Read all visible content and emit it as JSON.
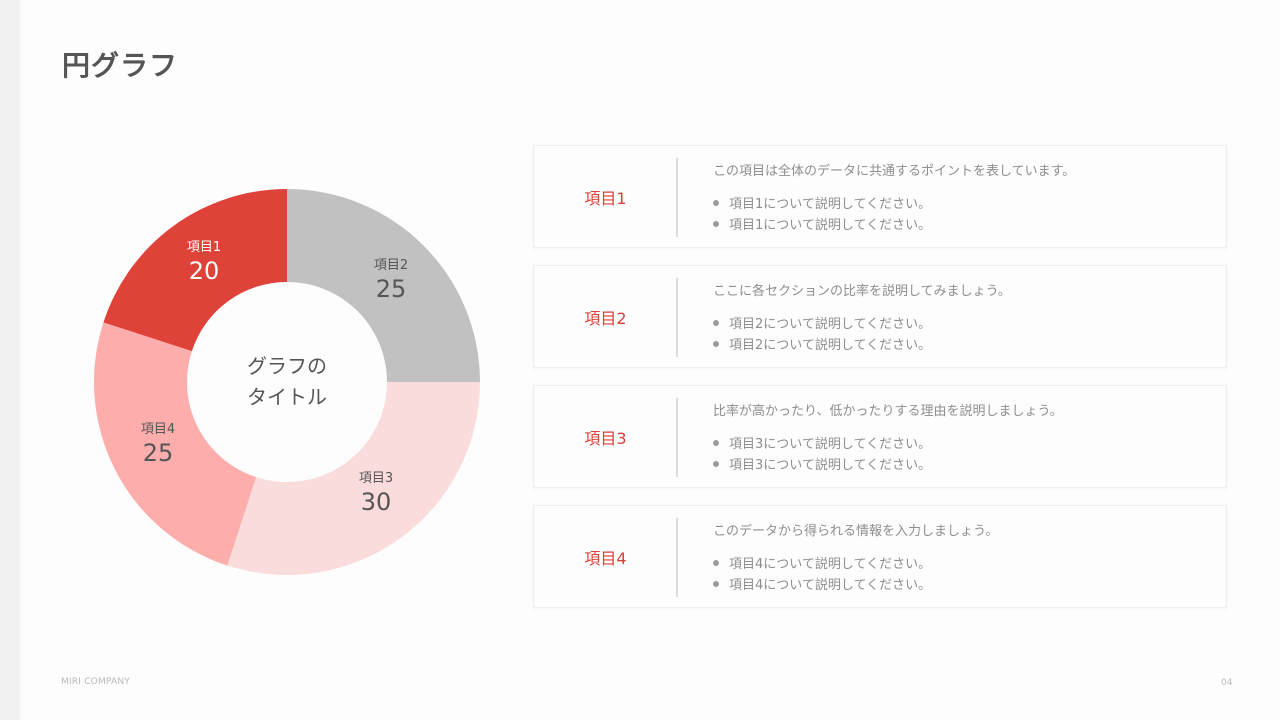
{
  "page": {
    "title": "円グラフ",
    "footer_company": "MIRI COMPANY",
    "page_number": "04"
  },
  "chart_data": {
    "type": "pie",
    "variant": "donut",
    "title": "グラフのタイトル",
    "center_label": "グラフの\nタイトル",
    "start_angle": "12 o'clock, clockwise",
    "categories": [
      "項目2",
      "項目3",
      "項目4",
      "項目1"
    ],
    "values": [
      25,
      30,
      25,
      20
    ],
    "colors": [
      "#c2c1c2",
      "#fadcdc",
      "#fdadab",
      "#df4239"
    ],
    "label_colors": [
      "#555555",
      "#555555",
      "#555555",
      "#ffffff"
    ],
    "legend": "none (labels inside segments)"
  },
  "segments": [
    {
      "name": "項目1",
      "value": "20"
    },
    {
      "name": "項目2",
      "value": "25"
    },
    {
      "name": "項目3",
      "value": "30"
    },
    {
      "name": "項目4",
      "value": "25"
    }
  ],
  "cards": [
    {
      "name": "項目1",
      "description": "この項目は全体のデータに共通するポイントを表しています。",
      "bullets": [
        "項目1について説明してください。",
        "項目1について説明してください。"
      ]
    },
    {
      "name": "項目2",
      "description": "ここに各セクションの比率を説明してみましょう。",
      "bullets": [
        "項目2について説明してください。",
        "項目2について説明してください。"
      ]
    },
    {
      "name": "項目3",
      "description": "比率が高かったり、低かったりする理由を説明しましょう。",
      "bullets": [
        "項目3について説明してください。",
        "項目3について説明してください。"
      ]
    },
    {
      "name": "項目4",
      "description": "このデータから得られる情報を入力しましょう。",
      "bullets": [
        "項目4について説明してください。",
        "項目4について説明してください。"
      ]
    }
  ],
  "colors": {
    "accent": "#d9413a",
    "text_muted": "#8e8e8e",
    "title": "#555555"
  }
}
